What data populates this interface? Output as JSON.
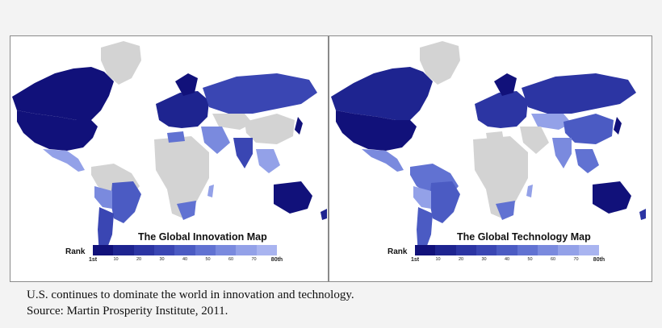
{
  "colors": {
    "page_background": "#f3f3f3",
    "panel_background": "#ffffff",
    "no_data": "#d3d3d3",
    "rank_scale": [
      "#11117a",
      "#1e2490",
      "#2c35a3",
      "#3a46b3",
      "#4b5bc3",
      "#6172d2",
      "#7a8ade",
      "#93a1e8",
      "#a9b4f0"
    ]
  },
  "maps": [
    {
      "title": "The Global Innovation Map",
      "rank_label": "Rank",
      "tick_labels": [
        "1st",
        "10",
        "20",
        "30",
        "40",
        "50",
        "60",
        "70",
        "80th"
      ]
    },
    {
      "title": "The Global Technology Map",
      "rank_label": "Rank",
      "tick_labels": [
        "1st",
        "10",
        "20",
        "30",
        "40",
        "50",
        "60",
        "70",
        "80th"
      ]
    }
  ],
  "caption": {
    "line1": "U.S. continues to dominate the world in innovation and technology.",
    "line2": "Source: Martin Prosperity Institute, 2011."
  }
}
